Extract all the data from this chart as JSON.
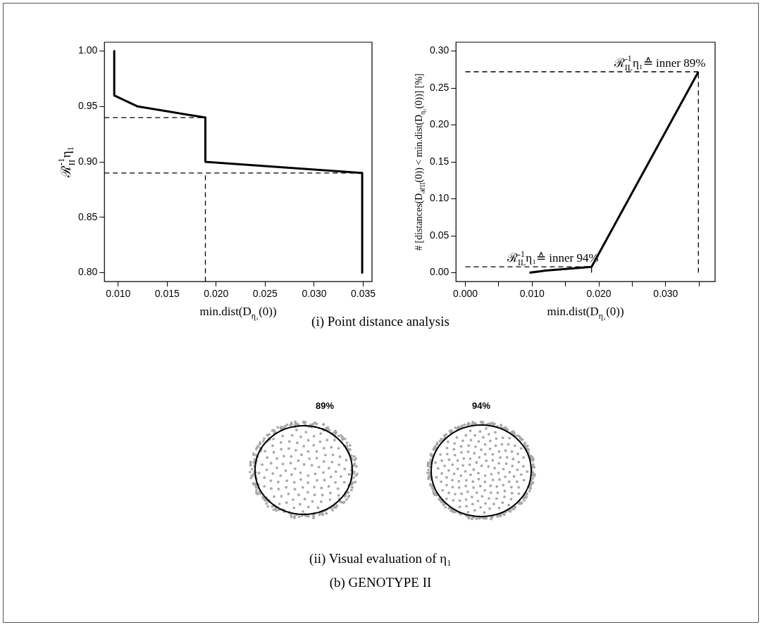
{
  "chart_data": [
    {
      "type": "line",
      "xlabel": "min.dist(D$_{η₁}$(0))",
      "ylabel": "ℛ$^{-1}$$_{II}$η₁",
      "marker": "none",
      "xlim": [
        0.0086,
        0.0359
      ],
      "xticks": [
        {
          "value": 0.01,
          "label": "0.010"
        },
        0.015,
        {
          "value": 0.02,
          "label": "0.020"
        },
        0.025,
        {
          "value": 0.03,
          "label": "0.030"
        },
        0.035
      ],
      "ylim": [
        0.792,
        1.008
      ],
      "yticks": [
        {
          "value": 0.8,
          "label": "0.80"
        },
        0.85,
        {
          "value": 0.9,
          "label": "0.90"
        },
        0.95,
        {
          "value": 1.0,
          "label": "1.00"
        }
      ],
      "series": [
        {
          "color": "#000000",
          "line_style": "solid",
          "x": [
            0.0096,
            0.0096,
            0.012,
            0.0189,
            0.0189,
            0.0349,
            0.0349
          ],
          "values": [
            1.0,
            0.96,
            0.95,
            0.94,
            0.9,
            0.89,
            0.8
          ]
        },
        {
          "color": "#000000",
          "line_style": "dashed",
          "x": [
            0.0086,
            0.0189
          ],
          "values": [
            0.94,
            0.94
          ]
        },
        {
          "color": "#000000",
          "line_style": "dashed",
          "x": [
            0.0086,
            0.0349
          ],
          "values": [
            0.89,
            0.89
          ]
        },
        {
          "color": "#000000",
          "line_style": "dashed",
          "x": [
            0.0189,
            0.0189
          ],
          "values": [
            0.792,
            0.89
          ]
        }
      ]
    },
    {
      "type": "line",
      "xlabel": "min.dist(D$_{η₁}$(0))",
      "ylabel": "# [distances(D$_{ℛII}$(0)) < min.dist(D$_{η₁}$(0))] [%]",
      "marker": "none",
      "xlim": [
        -0.0014,
        0.0374
      ],
      "xticks": [
        {
          "value": 0,
          "label": "0.000"
        },
        {
          "value": 0.005,
          "label": null
        },
        {
          "value": 0.01,
          "label": "0.010"
        },
        {
          "value": 0.015,
          "label": null
        },
        {
          "value": 0.02,
          "label": "0.020"
        },
        {
          "value": 0.025,
          "label": null
        },
        {
          "value": 0.03,
          "label": "0.030"
        },
        {
          "value": 0.035,
          "label": null
        }
      ],
      "ylim": [
        -0.012,
        0.312
      ],
      "yticks": [
        {
          "value": 0,
          "label": "0.00"
        },
        0.05,
        {
          "value": 0.1,
          "label": "0.10"
        },
        0.15,
        {
          "value": 0.2,
          "label": "0.20"
        },
        0.25,
        {
          "value": 0.3,
          "label": "0.30"
        }
      ],
      "series": [
        {
          "color": "#000000",
          "line_style": "solid",
          "x": [
            0.0096,
            0.012,
            0.0189,
            0.0349
          ],
          "values": [
            0.0,
            0.003,
            0.008,
            0.272
          ]
        },
        {
          "color": "#000000",
          "line_style": "dashed",
          "x": [
            0,
            0.0189
          ],
          "values": [
            0.008,
            0.008
          ]
        },
        {
          "color": "#000000",
          "line_style": "dashed",
          "x": [
            0.0189,
            0.0189
          ],
          "values": [
            0,
            0.008
          ]
        },
        {
          "color": "#000000",
          "line_style": "dashed",
          "x": [
            0,
            0.0349
          ],
          "values": [
            0.272,
            0.272
          ]
        },
        {
          "color": "#000000",
          "line_style": "dashed",
          "x": [
            0.0349,
            0.0349
          ],
          "values": [
            0,
            0.272
          ]
        }
      ],
      "annotations": [
        {
          "text": "ℛ$^{-1}$$_{IL}$η₁≙ inner 89%",
          "x": 0.0349,
          "y": 0.272
        },
        {
          "text": "ℛ$^{-1}$$_{IL}$η₁≙ inner 94%",
          "x": 0.0189,
          "y": 0.008
        }
      ]
    },
    {
      "type": "other",
      "title": "(ii) Visual evaluation of η₁",
      "subtitle": "(b) GENOTYPE II",
      "annotations": [
        "(i) Point distance analysis",
        "89%",
        "94%"
      ]
    }
  ]
}
